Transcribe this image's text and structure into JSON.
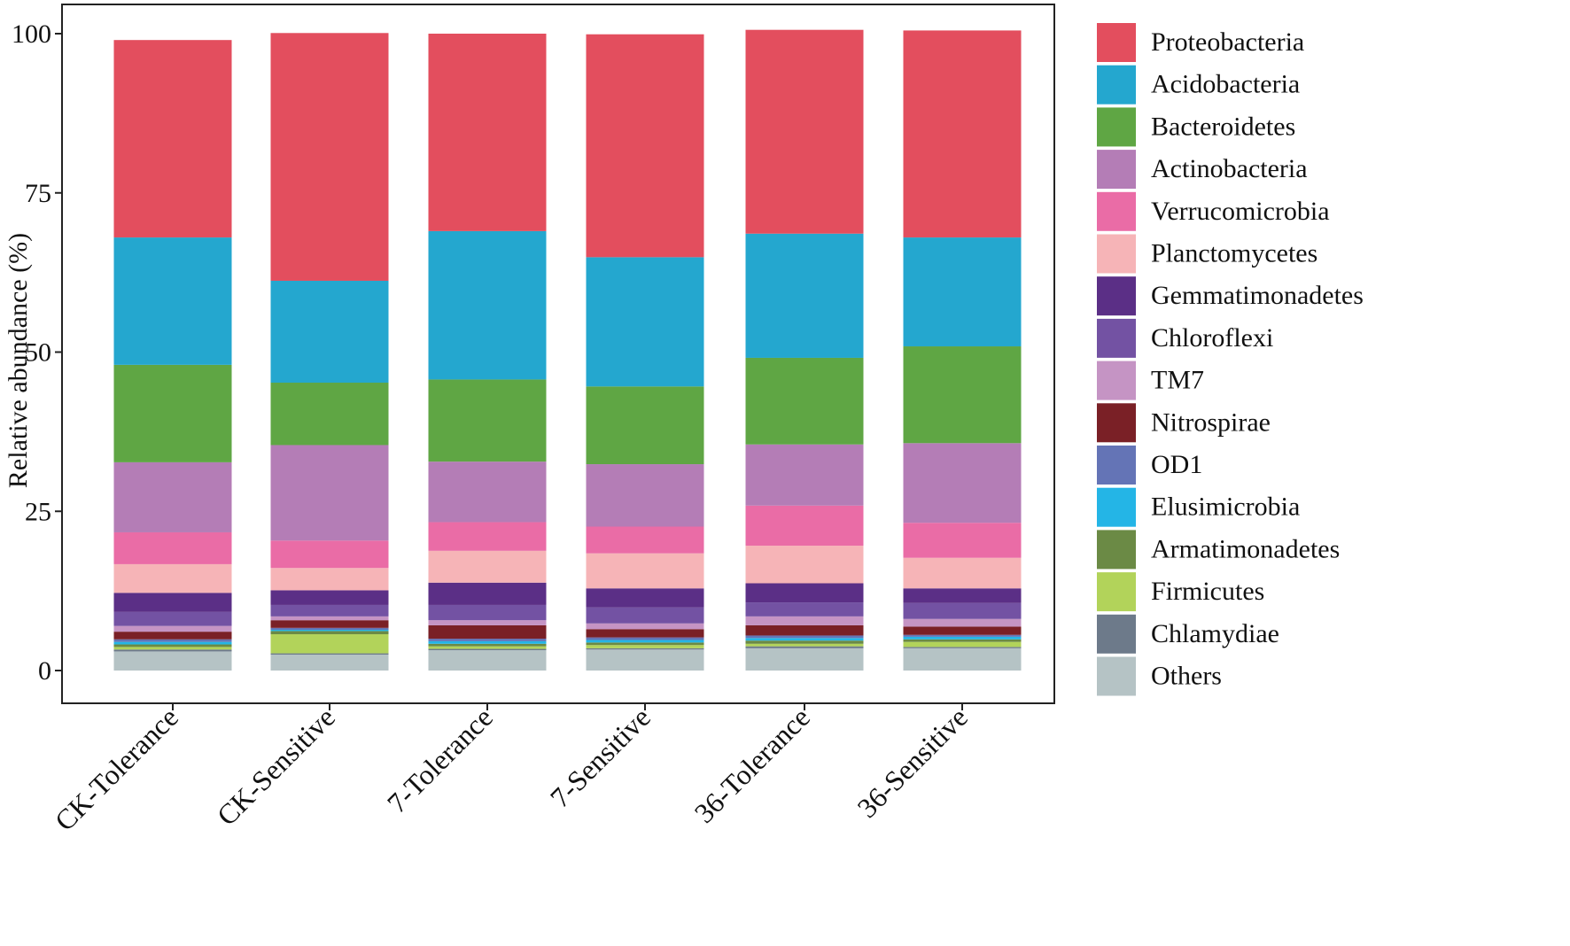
{
  "chart_data": {
    "type": "bar",
    "stacked": true,
    "title": "",
    "xlabel": "",
    "ylabel": "Relative abundance (%)",
    "ylim": [
      0,
      100
    ],
    "yticks": [
      0,
      25,
      50,
      75,
      100
    ],
    "grid": false,
    "legend_position": "right",
    "categories": [
      "CK-Tolerance",
      "CK-Sensitive",
      "7-Tolerance",
      "7-Sensitive",
      "36-Tolerance",
      "36-Sensitive"
    ],
    "series": [
      {
        "name": "Others",
        "color": "#b5c3c5",
        "values": [
          3.0,
          2.5,
          3.2,
          3.3,
          3.5,
          3.5
        ]
      },
      {
        "name": "Chlamydiae",
        "color": "#6d7a8a",
        "values": [
          0.3,
          0.2,
          0.2,
          0.2,
          0.3,
          0.2
        ]
      },
      {
        "name": "Firmicutes",
        "color": "#b2d35a",
        "values": [
          0.4,
          3.0,
          0.4,
          0.5,
          0.4,
          0.8
        ]
      },
      {
        "name": "Armatimonadetes",
        "color": "#6b8a45",
        "values": [
          0.4,
          0.5,
          0.4,
          0.4,
          0.5,
          0.4
        ]
      },
      {
        "name": "Elusimicrobia",
        "color": "#24b5e6",
        "values": [
          0.4,
          0.2,
          0.4,
          0.4,
          0.4,
          0.4
        ]
      },
      {
        "name": "OD1",
        "color": "#6474b6",
        "values": [
          0.4,
          0.3,
          0.4,
          0.4,
          0.4,
          0.3
        ]
      },
      {
        "name": "Nitrospirae",
        "color": "#7a2026",
        "values": [
          1.2,
          1.2,
          2.1,
          1.3,
          1.6,
          1.3
        ]
      },
      {
        "name": "TM7",
        "color": "#c594c4",
        "values": [
          0.9,
          0.6,
          0.8,
          0.9,
          1.4,
          1.2
        ]
      },
      {
        "name": "Chloroflexi",
        "color": "#7352a3",
        "values": [
          2.2,
          1.8,
          2.4,
          2.5,
          2.2,
          2.5
        ]
      },
      {
        "name": "Gemmatimonadetes",
        "color": "#5b2f86",
        "values": [
          3.0,
          2.3,
          3.5,
          3.0,
          3.0,
          2.3
        ]
      },
      {
        "name": "Planctomycetes",
        "color": "#f6b4b7",
        "values": [
          4.5,
          3.5,
          5.0,
          5.5,
          5.9,
          4.8
        ]
      },
      {
        "name": "Verrucomicrobia",
        "color": "#ea6ca6",
        "values": [
          5.0,
          4.3,
          4.5,
          4.2,
          6.3,
          5.5
        ]
      },
      {
        "name": "Actinobacteria",
        "color": "#b47db6",
        "values": [
          11.0,
          15.0,
          9.5,
          9.8,
          9.6,
          12.5
        ]
      },
      {
        "name": "Bacteroidetes",
        "color": "#5fa644",
        "values": [
          15.3,
          9.8,
          12.9,
          12.2,
          13.6,
          15.2
        ]
      },
      {
        "name": "Acidobacteria",
        "color": "#24a7cf",
        "values": [
          20.0,
          16.0,
          23.3,
          20.3,
          19.5,
          17.1
        ]
      },
      {
        "name": "Proteobacteria",
        "color": "#e34e5e",
        "values": [
          31.0,
          38.9,
          31.0,
          35.0,
          32.0,
          32.5
        ]
      }
    ],
    "legend_order": [
      "Proteobacteria",
      "Acidobacteria",
      "Bacteroidetes",
      "Actinobacteria",
      "Verrucomicrobia",
      "Planctomycetes",
      "Gemmatimonadetes",
      "Chloroflexi",
      "TM7",
      "Nitrospirae",
      "OD1",
      "Elusimicrobia",
      "Armatimonadetes",
      "Firmicutes",
      "Chlamydiae",
      "Others"
    ]
  }
}
